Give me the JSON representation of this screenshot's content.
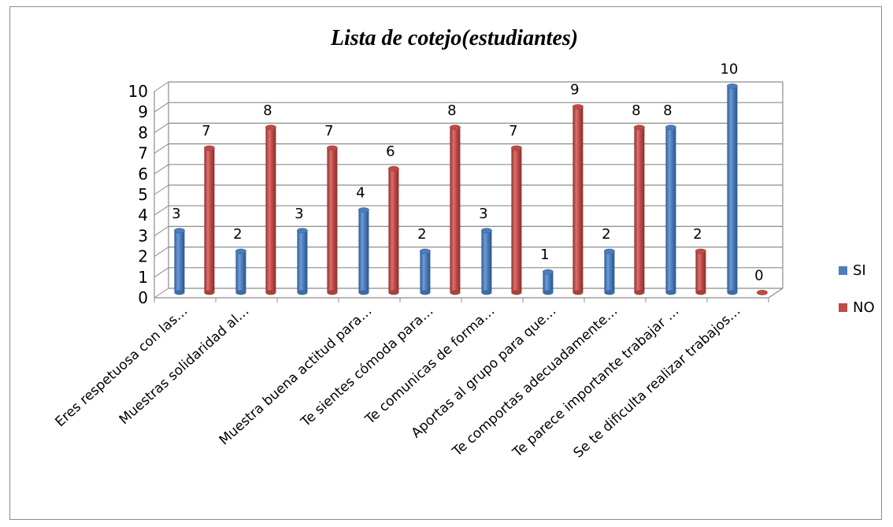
{
  "chart_data": {
    "type": "bar",
    "title": "Lista de cotejo(estudiantes)",
    "categories": [
      "Eres respetuosa con las…",
      "Muestras solidaridad al…",
      "",
      "Muestra buena actitud para…",
      "Te sientes cómoda para…",
      "Te comunicas de forma…",
      "Aportas al grupo para que…",
      "Te comportas adecuadamente…",
      "Te parece importante trabajar …",
      "Se te dificulta realizar trabajos…"
    ],
    "series": [
      {
        "name": "SI",
        "values": [
          3,
          2,
          3,
          4,
          2,
          3,
          1,
          2,
          8,
          10
        ]
      },
      {
        "name": "NO",
        "values": [
          7,
          8,
          7,
          6,
          8,
          7,
          9,
          8,
          2,
          0
        ]
      }
    ],
    "ylim": [
      0,
      10
    ],
    "yticks": [
      "0",
      "1",
      "2",
      "3",
      "4",
      "5",
      "6",
      "7",
      "8",
      "9",
      "10"
    ],
    "grid": true,
    "legend_position": "right",
    "colors": {
      "SI": "#4a7ebb",
      "NO": "#be4b48"
    }
  }
}
